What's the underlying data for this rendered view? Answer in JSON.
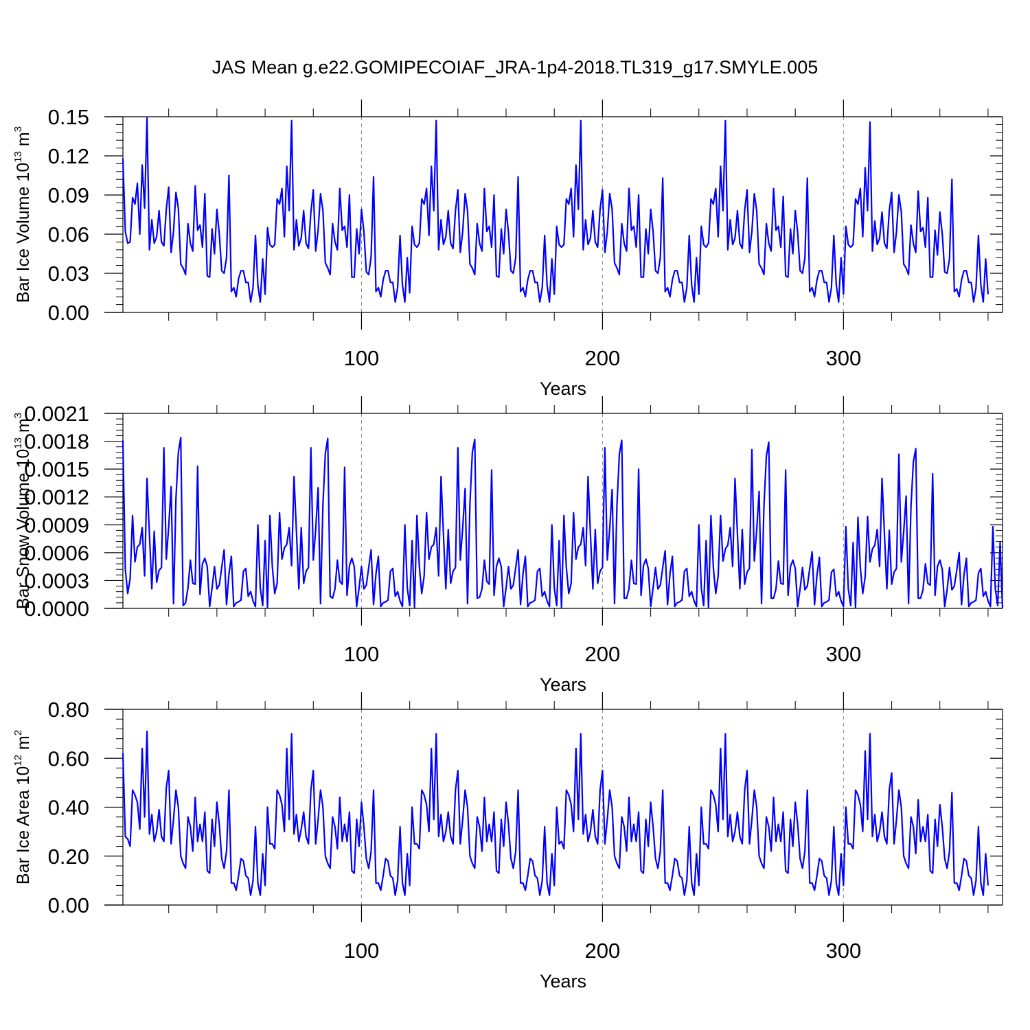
{
  "figure": {
    "title": "JAS Mean g.e22.GOMIPECOIAF_JRA-1p4-2018.TL319_g17.SMYLE.005",
    "line_color": "#0000ff",
    "vline_color": "#888888"
  },
  "chart_data": [
    {
      "type": "line",
      "name": "ice-volume",
      "ylabel_parts": [
        "Bar Ice Volume 10",
        "13",
        " m",
        "3"
      ],
      "xlabel": "Years",
      "ylim": [
        0,
        0.15
      ],
      "yticks": [
        "0.00",
        "0.03",
        "0.06",
        "0.09",
        "0.12",
        "0.15"
      ],
      "xlim": [
        1,
        366
      ],
      "xticks": [
        100,
        200,
        300
      ],
      "vlines": [
        100,
        200,
        300
      ],
      "grid": false,
      "x_start": 1,
      "values": [
        0.118,
        0.062,
        0.053,
        0.054,
        0.088,
        0.083,
        0.099,
        0.06,
        0.113,
        0.08,
        0.149,
        0.048,
        0.071,
        0.053,
        0.058,
        0.078,
        0.054,
        0.051,
        0.079,
        0.096,
        0.046,
        0.062,
        0.092,
        0.08,
        0.037,
        0.034,
        0.029,
        0.068,
        0.053,
        0.047,
        0.097,
        0.063,
        0.067,
        0.05,
        0.091,
        0.028,
        0.027,
        0.064,
        0.045,
        0.079,
        0.06,
        0.032,
        0.03,
        0.042,
        0.105,
        0.016,
        0.019,
        0.012,
        0.026,
        0.032,
        0.032,
        0.023,
        0.023,
        0.008,
        0.019,
        0.059,
        0.021,
        0.008,
        0.041,
        0.014,
        0.065,
        0.052,
        0.05,
        0.052,
        0.087,
        0.083,
        0.095,
        0.058,
        0.112,
        0.078,
        0.147,
        0.048,
        0.071,
        0.051,
        0.057,
        0.078,
        0.053,
        0.049,
        0.077,
        0.094,
        0.047,
        0.063,
        0.091,
        0.078,
        0.038,
        0.034,
        0.029,
        0.068,
        0.054,
        0.048,
        0.095,
        0.063,
        0.066,
        0.05,
        0.09,
        0.027,
        0.027,
        0.064,
        0.045,
        0.079,
        0.062,
        0.031,
        0.029,
        0.043,
        0.104,
        0.016,
        0.019,
        0.012,
        0.025,
        0.032,
        0.032,
        0.023,
        0.023,
        0.008,
        0.019,
        0.059,
        0.021,
        0.008,
        0.042,
        0.015,
        0.066,
        0.052,
        0.05,
        0.053,
        0.087,
        0.083,
        0.095,
        0.059,
        0.112,
        0.078,
        0.147,
        0.048,
        0.071,
        0.052,
        0.058,
        0.078,
        0.053,
        0.049,
        0.078,
        0.094,
        0.046,
        0.062,
        0.091,
        0.078,
        0.037,
        0.034,
        0.029,
        0.068,
        0.053,
        0.047,
        0.095,
        0.062,
        0.066,
        0.05,
        0.09,
        0.028,
        0.027,
        0.064,
        0.045,
        0.079,
        0.061,
        0.032,
        0.03,
        0.042,
        0.104,
        0.016,
        0.019,
        0.012,
        0.025,
        0.032,
        0.032,
        0.023,
        0.023,
        0.008,
        0.019,
        0.059,
        0.021,
        0.008,
        0.041,
        0.014,
        0.066,
        0.052,
        0.05,
        0.052,
        0.087,
        0.083,
        0.095,
        0.058,
        0.113,
        0.079,
        0.147,
        0.048,
        0.071,
        0.052,
        0.057,
        0.078,
        0.054,
        0.05,
        0.079,
        0.094,
        0.046,
        0.062,
        0.091,
        0.079,
        0.038,
        0.034,
        0.029,
        0.068,
        0.053,
        0.047,
        0.095,
        0.063,
        0.066,
        0.05,
        0.09,
        0.027,
        0.027,
        0.064,
        0.045,
        0.079,
        0.062,
        0.032,
        0.03,
        0.042,
        0.103,
        0.016,
        0.019,
        0.012,
        0.025,
        0.032,
        0.032,
        0.023,
        0.023,
        0.008,
        0.019,
        0.059,
        0.021,
        0.008,
        0.042,
        0.014,
        0.066,
        0.052,
        0.05,
        0.053,
        0.087,
        0.083,
        0.095,
        0.058,
        0.112,
        0.078,
        0.147,
        0.048,
        0.071,
        0.052,
        0.057,
        0.078,
        0.053,
        0.049,
        0.078,
        0.094,
        0.046,
        0.062,
        0.091,
        0.078,
        0.037,
        0.034,
        0.029,
        0.068,
        0.053,
        0.047,
        0.095,
        0.063,
        0.066,
        0.05,
        0.089,
        0.028,
        0.027,
        0.064,
        0.045,
        0.078,
        0.061,
        0.032,
        0.03,
        0.042,
        0.103,
        0.016,
        0.019,
        0.012,
        0.025,
        0.032,
        0.032,
        0.023,
        0.023,
        0.008,
        0.019,
        0.059,
        0.021,
        0.008,
        0.042,
        0.014,
        0.066,
        0.052,
        0.05,
        0.052,
        0.087,
        0.083,
        0.095,
        0.058,
        0.111,
        0.078,
        0.146,
        0.047,
        0.07,
        0.052,
        0.057,
        0.077,
        0.053,
        0.049,
        0.078,
        0.092,
        0.046,
        0.062,
        0.09,
        0.077,
        0.037,
        0.034,
        0.029,
        0.067,
        0.053,
        0.046,
        0.093,
        0.062,
        0.065,
        0.05,
        0.088,
        0.027,
        0.027,
        0.063,
        0.044,
        0.077,
        0.06,
        0.031,
        0.03,
        0.041,
        0.102,
        0.016,
        0.018,
        0.012,
        0.025,
        0.032,
        0.032,
        0.023,
        0.023,
        0.008,
        0.019,
        0.059,
        0.021,
        0.008,
        0.041,
        0.014
      ]
    },
    {
      "type": "line",
      "name": "snow-volume",
      "ylabel_parts": [
        "Bar Snow Volume 10",
        "13",
        " m",
        "3"
      ],
      "xlabel": "Years",
      "ylim": [
        0,
        0.0021
      ],
      "yticks": [
        "0.0000",
        "0.0003",
        "0.0006",
        "0.0009",
        "0.0012",
        "0.0015",
        "0.0018",
        "0.0021"
      ],
      "xlim": [
        1,
        366
      ],
      "xticks": [
        100,
        200,
        300
      ],
      "vlines": [
        100,
        200,
        300
      ],
      "grid": false,
      "x_start": 1,
      "values": [
        0.00181,
        0.00042,
        0.00016,
        0.00032,
        0.001,
        0.0005,
        0.00066,
        0.00069,
        0.00087,
        0.00035,
        0.0014,
        0.0008,
        0.00021,
        0.00083,
        0.00028,
        0.00041,
        0.00044,
        0.00173,
        0.00053,
        0.00088,
        0.00131,
        5e-05,
        0.00118,
        0.00168,
        0.00184,
        3e-05,
        6e-05,
        0.00022,
        0.00052,
        0.00027,
        0.00026,
        0.00153,
        0.00015,
        0.00048,
        0.00054,
        0.00045,
        2e-05,
        0.00022,
        0.00045,
        0.00021,
        0.00025,
        0.00044,
        0.00063,
        4e-05,
        0.00037,
        0.00056,
        2e-05,
        6e-05,
        7e-05,
        9e-05,
        0.0004,
        0.00043,
        0.00013,
        0.00018,
        8e-05,
        2e-05,
        0.0009,
        0.00022,
        3e-05,
        0.00073,
        1e-05,
        0.001,
        0.00045,
        0.00016,
        0.00027,
        0.00103,
        0.00053,
        0.00065,
        0.00069,
        0.00087,
        0.00046,
        0.00142,
        0.00083,
        0.00021,
        0.00087,
        0.00027,
        0.0004,
        0.00044,
        0.00173,
        0.00052,
        0.00085,
        0.0013,
        5e-05,
        0.00112,
        0.00167,
        0.00183,
        0.00013,
        0.00011,
        0.00021,
        0.00052,
        0.00029,
        0.00026,
        0.00152,
        0.00014,
        0.00046,
        0.00054,
        0.00045,
        2e-05,
        0.00022,
        0.00045,
        0.00021,
        0.00025,
        0.00044,
        0.00063,
        4e-05,
        0.00037,
        0.00056,
        2e-05,
        6e-05,
        7e-05,
        9e-05,
        0.0004,
        0.00043,
        0.00013,
        0.00018,
        8e-05,
        2e-05,
        0.0009,
        0.00022,
        3e-05,
        0.00073,
        1e-05,
        0.001,
        0.00045,
        0.00016,
        0.00035,
        0.00103,
        0.00053,
        0.00066,
        0.00069,
        0.00087,
        0.00035,
        0.00142,
        0.0008,
        0.00021,
        0.00085,
        0.00027,
        0.0004,
        0.00044,
        0.00173,
        0.00052,
        0.00087,
        0.00129,
        5e-05,
        0.00113,
        0.00168,
        0.00182,
        0.00011,
        0.00012,
        0.00021,
        0.00052,
        0.00029,
        0.00026,
        0.00149,
        0.00014,
        0.00045,
        0.00054,
        0.00045,
        2e-05,
        0.00022,
        0.00045,
        0.00021,
        0.00025,
        0.00044,
        0.00063,
        4e-05,
        0.00037,
        0.00056,
        2e-05,
        6e-05,
        7e-05,
        9e-05,
        0.0004,
        0.00043,
        0.00013,
        0.00018,
        8e-05,
        2e-05,
        0.0009,
        0.00022,
        3e-05,
        0.00073,
        1e-05,
        0.001,
        0.00044,
        0.00016,
        0.00027,
        0.00103,
        0.00053,
        0.00066,
        0.00069,
        0.00087,
        0.00046,
        0.00142,
        0.0008,
        0.00021,
        0.00085,
        0.00027,
        0.0004,
        0.00044,
        0.00173,
        0.00052,
        0.00086,
        0.00128,
        5e-05,
        0.00111,
        0.00166,
        0.00181,
        0.00011,
        0.00011,
        0.00021,
        0.00052,
        0.00027,
        0.00026,
        0.0015,
        0.00014,
        0.00046,
        0.00053,
        0.00043,
        2e-05,
        0.00022,
        0.00044,
        0.00021,
        0.00025,
        0.00044,
        0.00062,
        4e-05,
        0.00037,
        0.00056,
        2e-05,
        6e-05,
        7e-05,
        9e-05,
        0.0004,
        0.00043,
        0.00013,
        0.00018,
        8e-05,
        2e-05,
        0.0009,
        0.00022,
        3e-05,
        0.00073,
        1e-05,
        0.001,
        0.00044,
        0.00016,
        0.00035,
        0.001,
        0.00051,
        0.00064,
        0.00068,
        0.00087,
        0.00045,
        0.0014,
        0.0008,
        0.00021,
        0.00085,
        0.00026,
        0.00039,
        0.00043,
        0.00171,
        0.00051,
        0.00085,
        0.00126,
        5e-05,
        0.0011,
        0.00164,
        0.00179,
        0.00011,
        0.00011,
        0.00021,
        0.00051,
        0.00027,
        0.00026,
        0.00149,
        0.00014,
        0.00045,
        0.00052,
        0.00043,
        2e-05,
        0.00021,
        0.00044,
        0.0002,
        0.00024,
        0.00043,
        0.00061,
        4e-05,
        0.00036,
        0.00055,
        2e-05,
        6e-05,
        7e-05,
        9e-05,
        0.00039,
        0.00042,
        0.00013,
        0.00018,
        8e-05,
        2e-05,
        0.00088,
        0.00021,
        3e-05,
        0.00071,
        1e-05,
        0.00098,
        0.00044,
        0.00016,
        0.00034,
        0.00099,
        0.0005,
        0.00064,
        0.00068,
        0.00085,
        0.00045,
        0.0014,
        0.0008,
        0.00021,
        0.00084,
        0.00026,
        0.00039,
        0.00043,
        0.00166,
        0.0005,
        0.00083,
        0.00121,
        5e-05,
        0.00109,
        0.00158,
        0.00172,
        0.00011,
        0.00011,
        0.0002,
        0.00048,
        0.00027,
        0.00025,
        0.00145,
        0.00014,
        0.00045,
        0.00052,
        0.00042,
        2e-05,
        0.0002,
        0.00044,
        0.0002,
        0.00024,
        0.00041,
        0.0006,
        4e-05,
        0.00036,
        0.00054,
        2e-05,
        6e-05,
        7e-05,
        9e-05,
        0.00038,
        0.00043,
        0.00013,
        0.00018,
        8e-05,
        2e-05,
        0.00088,
        0.00021,
        3e-05,
        0.00071,
        0.0
      ]
    },
    {
      "type": "line",
      "name": "ice-area",
      "ylabel_parts": [
        "Bar Ice Area 10",
        "12",
        " m",
        "2"
      ],
      "xlabel": "Years",
      "ylim": [
        0,
        0.8
      ],
      "yticks": [
        "0.00",
        "0.20",
        "0.40",
        "0.60",
        "0.80"
      ],
      "xlim": [
        1,
        366
      ],
      "xticks": [
        100,
        200,
        300
      ],
      "vlines": [
        100,
        200,
        300
      ],
      "grid": false,
      "x_start": 1,
      "values": [
        0.62,
        0.28,
        0.27,
        0.24,
        0.47,
        0.45,
        0.42,
        0.31,
        0.64,
        0.36,
        0.71,
        0.29,
        0.37,
        0.26,
        0.3,
        0.39,
        0.28,
        0.26,
        0.48,
        0.55,
        0.25,
        0.35,
        0.47,
        0.4,
        0.2,
        0.17,
        0.15,
        0.36,
        0.32,
        0.22,
        0.44,
        0.26,
        0.33,
        0.26,
        0.38,
        0.14,
        0.13,
        0.35,
        0.24,
        0.42,
        0.33,
        0.19,
        0.15,
        0.22,
        0.47,
        0.09,
        0.09,
        0.06,
        0.12,
        0.19,
        0.18,
        0.12,
        0.11,
        0.04,
        0.1,
        0.32,
        0.09,
        0.04,
        0.21,
        0.08,
        0.4,
        0.25,
        0.25,
        0.23,
        0.47,
        0.45,
        0.41,
        0.3,
        0.64,
        0.35,
        0.7,
        0.29,
        0.37,
        0.26,
        0.31,
        0.38,
        0.28,
        0.25,
        0.47,
        0.55,
        0.25,
        0.35,
        0.47,
        0.4,
        0.2,
        0.17,
        0.15,
        0.36,
        0.32,
        0.23,
        0.44,
        0.26,
        0.33,
        0.26,
        0.38,
        0.14,
        0.13,
        0.35,
        0.24,
        0.42,
        0.32,
        0.19,
        0.15,
        0.22,
        0.47,
        0.09,
        0.09,
        0.06,
        0.12,
        0.19,
        0.18,
        0.12,
        0.11,
        0.04,
        0.1,
        0.32,
        0.09,
        0.04,
        0.21,
        0.08,
        0.4,
        0.25,
        0.25,
        0.23,
        0.47,
        0.45,
        0.41,
        0.3,
        0.64,
        0.35,
        0.7,
        0.28,
        0.37,
        0.26,
        0.3,
        0.38,
        0.28,
        0.25,
        0.47,
        0.55,
        0.25,
        0.35,
        0.47,
        0.4,
        0.2,
        0.17,
        0.15,
        0.36,
        0.32,
        0.22,
        0.44,
        0.26,
        0.33,
        0.26,
        0.38,
        0.14,
        0.13,
        0.35,
        0.24,
        0.42,
        0.33,
        0.19,
        0.15,
        0.22,
        0.47,
        0.09,
        0.09,
        0.06,
        0.12,
        0.19,
        0.18,
        0.12,
        0.11,
        0.04,
        0.1,
        0.32,
        0.09,
        0.04,
        0.21,
        0.08,
        0.4,
        0.25,
        0.26,
        0.23,
        0.47,
        0.45,
        0.41,
        0.3,
        0.64,
        0.35,
        0.7,
        0.29,
        0.37,
        0.26,
        0.3,
        0.39,
        0.28,
        0.25,
        0.47,
        0.55,
        0.25,
        0.35,
        0.47,
        0.4,
        0.2,
        0.17,
        0.15,
        0.36,
        0.32,
        0.22,
        0.44,
        0.26,
        0.33,
        0.26,
        0.38,
        0.14,
        0.13,
        0.35,
        0.24,
        0.42,
        0.32,
        0.19,
        0.15,
        0.22,
        0.47,
        0.09,
        0.09,
        0.06,
        0.12,
        0.19,
        0.18,
        0.12,
        0.11,
        0.04,
        0.1,
        0.32,
        0.09,
        0.04,
        0.21,
        0.08,
        0.4,
        0.25,
        0.25,
        0.23,
        0.47,
        0.45,
        0.41,
        0.3,
        0.64,
        0.35,
        0.7,
        0.28,
        0.37,
        0.26,
        0.3,
        0.38,
        0.28,
        0.25,
        0.47,
        0.55,
        0.25,
        0.35,
        0.47,
        0.4,
        0.2,
        0.17,
        0.15,
        0.36,
        0.32,
        0.22,
        0.44,
        0.26,
        0.33,
        0.26,
        0.38,
        0.14,
        0.13,
        0.35,
        0.24,
        0.42,
        0.33,
        0.19,
        0.15,
        0.22,
        0.47,
        0.09,
        0.09,
        0.06,
        0.12,
        0.19,
        0.18,
        0.12,
        0.11,
        0.04,
        0.1,
        0.32,
        0.09,
        0.04,
        0.21,
        0.08,
        0.4,
        0.25,
        0.25,
        0.23,
        0.47,
        0.45,
        0.41,
        0.3,
        0.63,
        0.35,
        0.7,
        0.28,
        0.37,
        0.26,
        0.3,
        0.38,
        0.28,
        0.25,
        0.47,
        0.54,
        0.25,
        0.35,
        0.47,
        0.4,
        0.2,
        0.17,
        0.15,
        0.36,
        0.32,
        0.21,
        0.43,
        0.26,
        0.32,
        0.26,
        0.37,
        0.14,
        0.13,
        0.35,
        0.24,
        0.41,
        0.32,
        0.19,
        0.15,
        0.22,
        0.46,
        0.09,
        0.09,
        0.06,
        0.12,
        0.19,
        0.18,
        0.12,
        0.11,
        0.04,
        0.1,
        0.32,
        0.09,
        0.04,
        0.21,
        0.08
      ]
    }
  ]
}
